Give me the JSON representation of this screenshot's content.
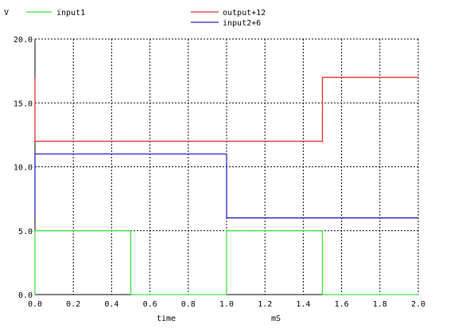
{
  "chart_data": {
    "type": "line",
    "title": "",
    "xlabel": "time",
    "xunit": "mS",
    "ylabel": "V",
    "xlim": [
      0,
      2
    ],
    "ylim": [
      0,
      20
    ],
    "x_ticks": [
      0,
      0.2,
      0.4,
      0.6,
      0.8,
      1.0,
      1.2,
      1.4,
      1.6,
      1.8,
      2.0
    ],
    "x_tick_labels": [
      "0.0",
      "0.2",
      "0.4",
      "0.6",
      "0.8",
      "1.0",
      "1.2",
      "1.4",
      "1.6",
      "1.8",
      "2.0"
    ],
    "y_ticks": [
      0,
      5,
      10,
      15,
      20
    ],
    "y_tick_labels": [
      "0.0",
      "5.0",
      "10.0",
      "15.0",
      "20.0"
    ],
    "grid": true,
    "legend_position": "top",
    "series": [
      {
        "name": "input1",
        "color": "#40e040",
        "x": [
          0,
          0,
          0.5,
          0.5,
          1.0,
          1.0,
          1.5,
          1.5,
          2.0
        ],
        "y": [
          0,
          5,
          5,
          0,
          0,
          5,
          5,
          0,
          0
        ]
      },
      {
        "name": "output+12",
        "color": "#e03030",
        "x": [
          0,
          0,
          1.5,
          1.5,
          2.0
        ],
        "y": [
          17,
          12,
          12,
          17,
          17
        ]
      },
      {
        "name": "input2+6",
        "color": "#2020c0",
        "x": [
          0,
          0,
          1.0,
          1.0,
          2.0
        ],
        "y": [
          6,
          11,
          11,
          6,
          6
        ]
      }
    ]
  }
}
